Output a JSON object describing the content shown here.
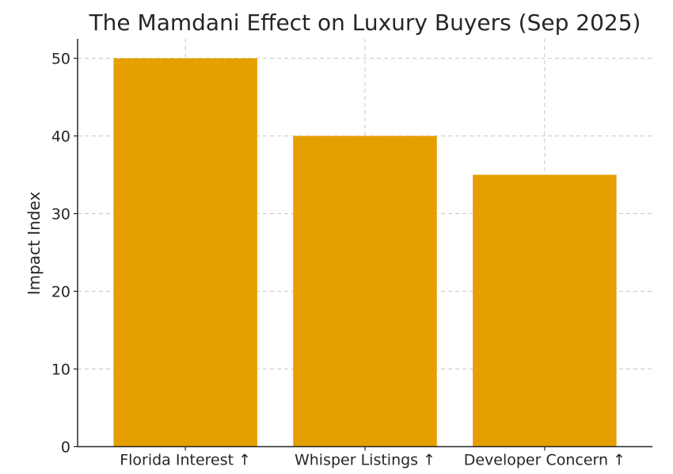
{
  "chart_data": {
    "type": "bar",
    "title": "The Mamdani Effect on Luxury Buyers (Sep 2025)",
    "xlabel": "",
    "ylabel": "Impact Index",
    "categories": [
      "Florida Interest ↑",
      "Whisper Listings ↑",
      "Developer Concern ↑"
    ],
    "values": [
      50,
      40,
      35
    ],
    "ylim": [
      0,
      52.5
    ],
    "yticks": [
      0,
      10,
      20,
      30,
      40,
      50
    ],
    "bar_color": "#E69F00",
    "grid": true,
    "legend": "none"
  }
}
